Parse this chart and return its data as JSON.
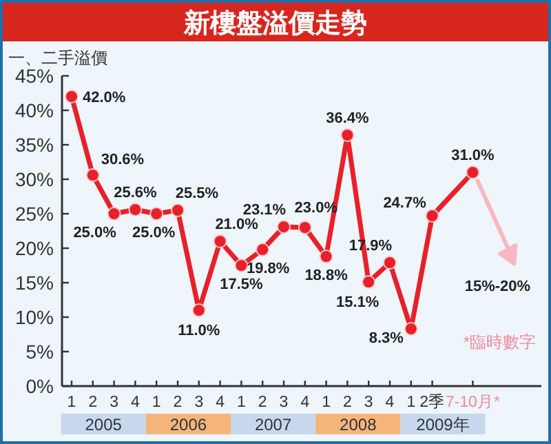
{
  "chart_data": {
    "type": "line",
    "title": "新樓盤溢價走勢",
    "ylabel": "一、二手溢價",
    "categories": [
      "1",
      "2",
      "3",
      "4",
      "1",
      "2",
      "3",
      "4",
      "1",
      "2",
      "3",
      "4",
      "1",
      "2",
      "3",
      "4",
      "1",
      "2季",
      "7-10月*"
    ],
    "series": [
      {
        "color": "#e8202a",
        "values": [
          42.0,
          30.6,
          25.0,
          25.6,
          25.0,
          25.5,
          11.0,
          21.0,
          17.5,
          19.8,
          23.1,
          23.0,
          18.8,
          36.4,
          15.1,
          17.9,
          8.3,
          24.7,
          31.0
        ],
        "value_labels": [
          "42.0%",
          "30.6%",
          "25.0%",
          "25.6%",
          "25.0%",
          "25.5%",
          "11.0%",
          "21.0%",
          "17.5%",
          "19.8%",
          "23.1%",
          "23.0%",
          "18.8%",
          "36.4%",
          "15.1%",
          "17.9%",
          "8.3%",
          "24.7%",
          "31.0%"
        ]
      }
    ],
    "ylim": [
      0,
      45
    ],
    "yticks": [
      {
        "value": 0,
        "label": "0%"
      },
      {
        "value": 5,
        "label": "5%"
      },
      {
        "value": 10,
        "label": "10%"
      },
      {
        "value": 15,
        "label": "15%"
      },
      {
        "value": 20,
        "label": "20%"
      },
      {
        "value": 25,
        "label": "25%"
      },
      {
        "value": 30,
        "label": "30%"
      },
      {
        "value": 35,
        "label": "35%"
      },
      {
        "value": 40,
        "label": "40%"
      },
      {
        "value": 45,
        "label": "45%"
      }
    ],
    "marker": "circle",
    "line_style": "solid",
    "grid": false,
    "annotations": [
      "15%-20%",
      "*臨時數字",
      "2005",
      "2006",
      "2007",
      "2008",
      "2009年"
    ]
  }
}
